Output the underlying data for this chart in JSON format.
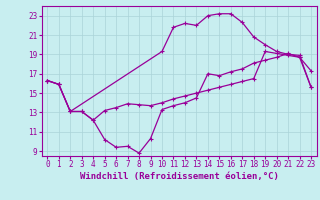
{
  "background_color": "#c8eef0",
  "grid_color": "#aad4d8",
  "line_color": "#990099",
  "marker": "+",
  "xlabel": "Windchill (Refroidissement éolien,°C)",
  "ylabel_ticks": [
    9,
    11,
    13,
    15,
    17,
    19,
    21,
    23
  ],
  "xlabel_ticks": [
    0,
    1,
    2,
    3,
    4,
    5,
    6,
    7,
    8,
    9,
    10,
    11,
    12,
    13,
    14,
    15,
    16,
    17,
    18,
    19,
    20,
    21,
    22,
    23
  ],
  "xlim": [
    -0.5,
    23.5
  ],
  "ylim": [
    8.5,
    24.0
  ],
  "curve1_x": [
    0,
    1,
    2,
    3,
    4,
    5,
    6,
    7,
    8,
    9,
    10,
    11,
    12,
    13,
    14,
    15,
    16,
    17,
    18,
    19,
    20,
    21,
    22,
    23
  ],
  "curve1_y": [
    16.3,
    15.9,
    13.1,
    13.1,
    12.2,
    10.2,
    9.4,
    9.5,
    8.8,
    10.3,
    13.3,
    13.7,
    14.0,
    14.5,
    17.0,
    16.8,
    17.2,
    17.5,
    18.1,
    18.4,
    18.7,
    19.1,
    18.7,
    17.3
  ],
  "curve2_x": [
    0,
    1,
    2,
    3,
    4,
    5,
    6,
    7,
    8,
    9,
    10,
    11,
    12,
    13,
    14,
    15,
    16,
    17,
    18,
    19,
    20,
    21,
    22,
    23
  ],
  "curve2_y": [
    16.3,
    15.9,
    13.1,
    13.1,
    12.2,
    13.2,
    13.5,
    13.9,
    13.8,
    13.7,
    14.0,
    14.4,
    14.7,
    15.0,
    15.3,
    15.6,
    15.9,
    16.2,
    16.5,
    19.3,
    19.1,
    18.9,
    18.7,
    15.6
  ],
  "curve3_x": [
    0,
    1,
    2,
    10,
    11,
    12,
    13,
    14,
    15,
    16,
    17,
    18,
    19,
    20,
    21,
    22,
    23
  ],
  "curve3_y": [
    16.3,
    15.9,
    13.1,
    19.3,
    21.8,
    22.2,
    22.0,
    23.0,
    23.2,
    23.2,
    22.3,
    20.8,
    20.0,
    19.3,
    19.0,
    18.9,
    15.6
  ],
  "tick_fontsize": 5.5,
  "label_fontsize": 6.5
}
